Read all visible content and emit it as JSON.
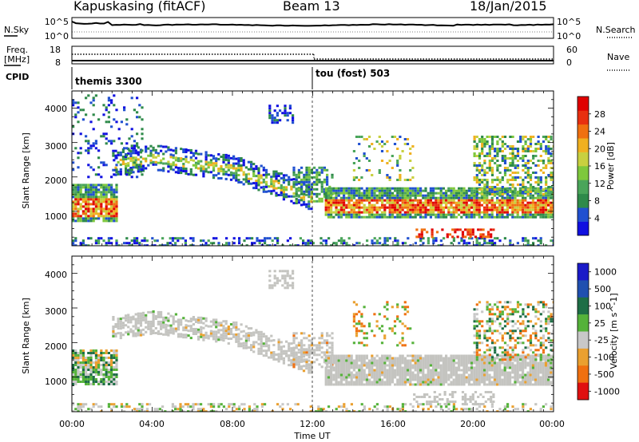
{
  "header": {
    "station": "Kapuskasing (fitACF)",
    "beam": "Beam 13",
    "date": "18/Jan/2015"
  },
  "top_panels": {
    "nsky_label": "N.Sky",
    "nsky_ticks": [
      "10^5",
      "10^0"
    ],
    "nsearch_label": "N.Search",
    "nsearch_ticks": [
      "10^5",
      "10^0"
    ],
    "freq_label": "Freq.",
    "freq_unit": "[MHz]",
    "freq_ticks": [
      "18",
      "8"
    ],
    "nave_label": "Nave",
    "nave_ticks": [
      "60",
      "0"
    ],
    "cpid_label": "CPID",
    "cpid_segments": [
      {
        "name": "themis 3300",
        "start_hour": 0,
        "end_hour": 12
      },
      {
        "name": "tou (fost) 503",
        "start_hour": 12,
        "end_hour": 24
      }
    ]
  },
  "chart_data": [
    {
      "type": "heatmap",
      "title": "",
      "ylabel": "Slant Range [km]",
      "xlabel": "",
      "x_range_hours": [
        0,
        24
      ],
      "ylim": [
        0,
        4500
      ],
      "yticks": [
        "1000",
        "2000",
        "3000",
        "4000"
      ],
      "colorbar": {
        "label": "Power [dB]",
        "ticks": [
          "4",
          "8",
          "12",
          "16",
          "20",
          "24",
          "28"
        ],
        "range": [
          0,
          32
        ]
      },
      "features": [
        {
          "name": "E/F-region echo 00-03 UT",
          "x_hours": [
            0,
            2.2
          ],
          "y_km": [
            700,
            1800
          ],
          "peak_db": 26
        },
        {
          "name": "F-region band 02-12 UT",
          "x_hours": [
            2,
            12
          ],
          "y_km": [
            1600,
            3000
          ],
          "peak_db": 20
        },
        {
          "name": "near-range band 12-24 UT",
          "x_hours": [
            12.5,
            24
          ],
          "y_km": [
            800,
            1700
          ],
          "peak_db": 26
        },
        {
          "name": "far echoes 20-24 UT",
          "x_hours": [
            20,
            24
          ],
          "y_km": [
            1500,
            3200
          ],
          "peak_db": 18
        }
      ]
    },
    {
      "type": "heatmap",
      "title": "",
      "ylabel": "Slant Range [km]",
      "xlabel": "Time UT",
      "x_range_hours": [
        0,
        24
      ],
      "ylim": [
        0,
        4500
      ],
      "yticks": [
        "1000",
        "2000",
        "3000",
        "4000"
      ],
      "xticks": [
        "00:00",
        "04:00",
        "08:00",
        "12:00",
        "16:00",
        "20:00",
        "00:00"
      ],
      "colorbar": {
        "label": "Velocity [m s^-1]",
        "ticks": [
          "1000",
          "500",
          "100",
          "25",
          "-25",
          "-100",
          "-500",
          "-1000"
        ]
      },
      "features": [
        {
          "name": "ground scatter band 02-12 UT",
          "x_hours": [
            2,
            12
          ],
          "y_km": [
            1700,
            3000
          ],
          "velocity": "0"
        },
        {
          "name": "positive velocity echo 00-02 UT",
          "x_hours": [
            0,
            2
          ],
          "y_km": [
            900,
            1700
          ],
          "velocity": "100"
        },
        {
          "name": "ground scatter 12-24 UT",
          "x_hours": [
            12.5,
            24
          ],
          "y_km": [
            800,
            1600
          ],
          "velocity": "0"
        }
      ]
    }
  ],
  "colors": {
    "power_scale": [
      "#1010e0",
      "#2050d0",
      "#2e8a4a",
      "#4aa55a",
      "#7ec83c",
      "#c8d040",
      "#f0b020",
      "#f07010",
      "#e83010",
      "#e00000"
    ],
    "velocity_scale": [
      "#1a1ac8",
      "#2050b0",
      "#1e6e46",
      "#55b23a",
      "#c8c8c8",
      "#eaa030",
      "#f07010",
      "#e01010"
    ],
    "ground_scatter": "#c4c4c0"
  }
}
